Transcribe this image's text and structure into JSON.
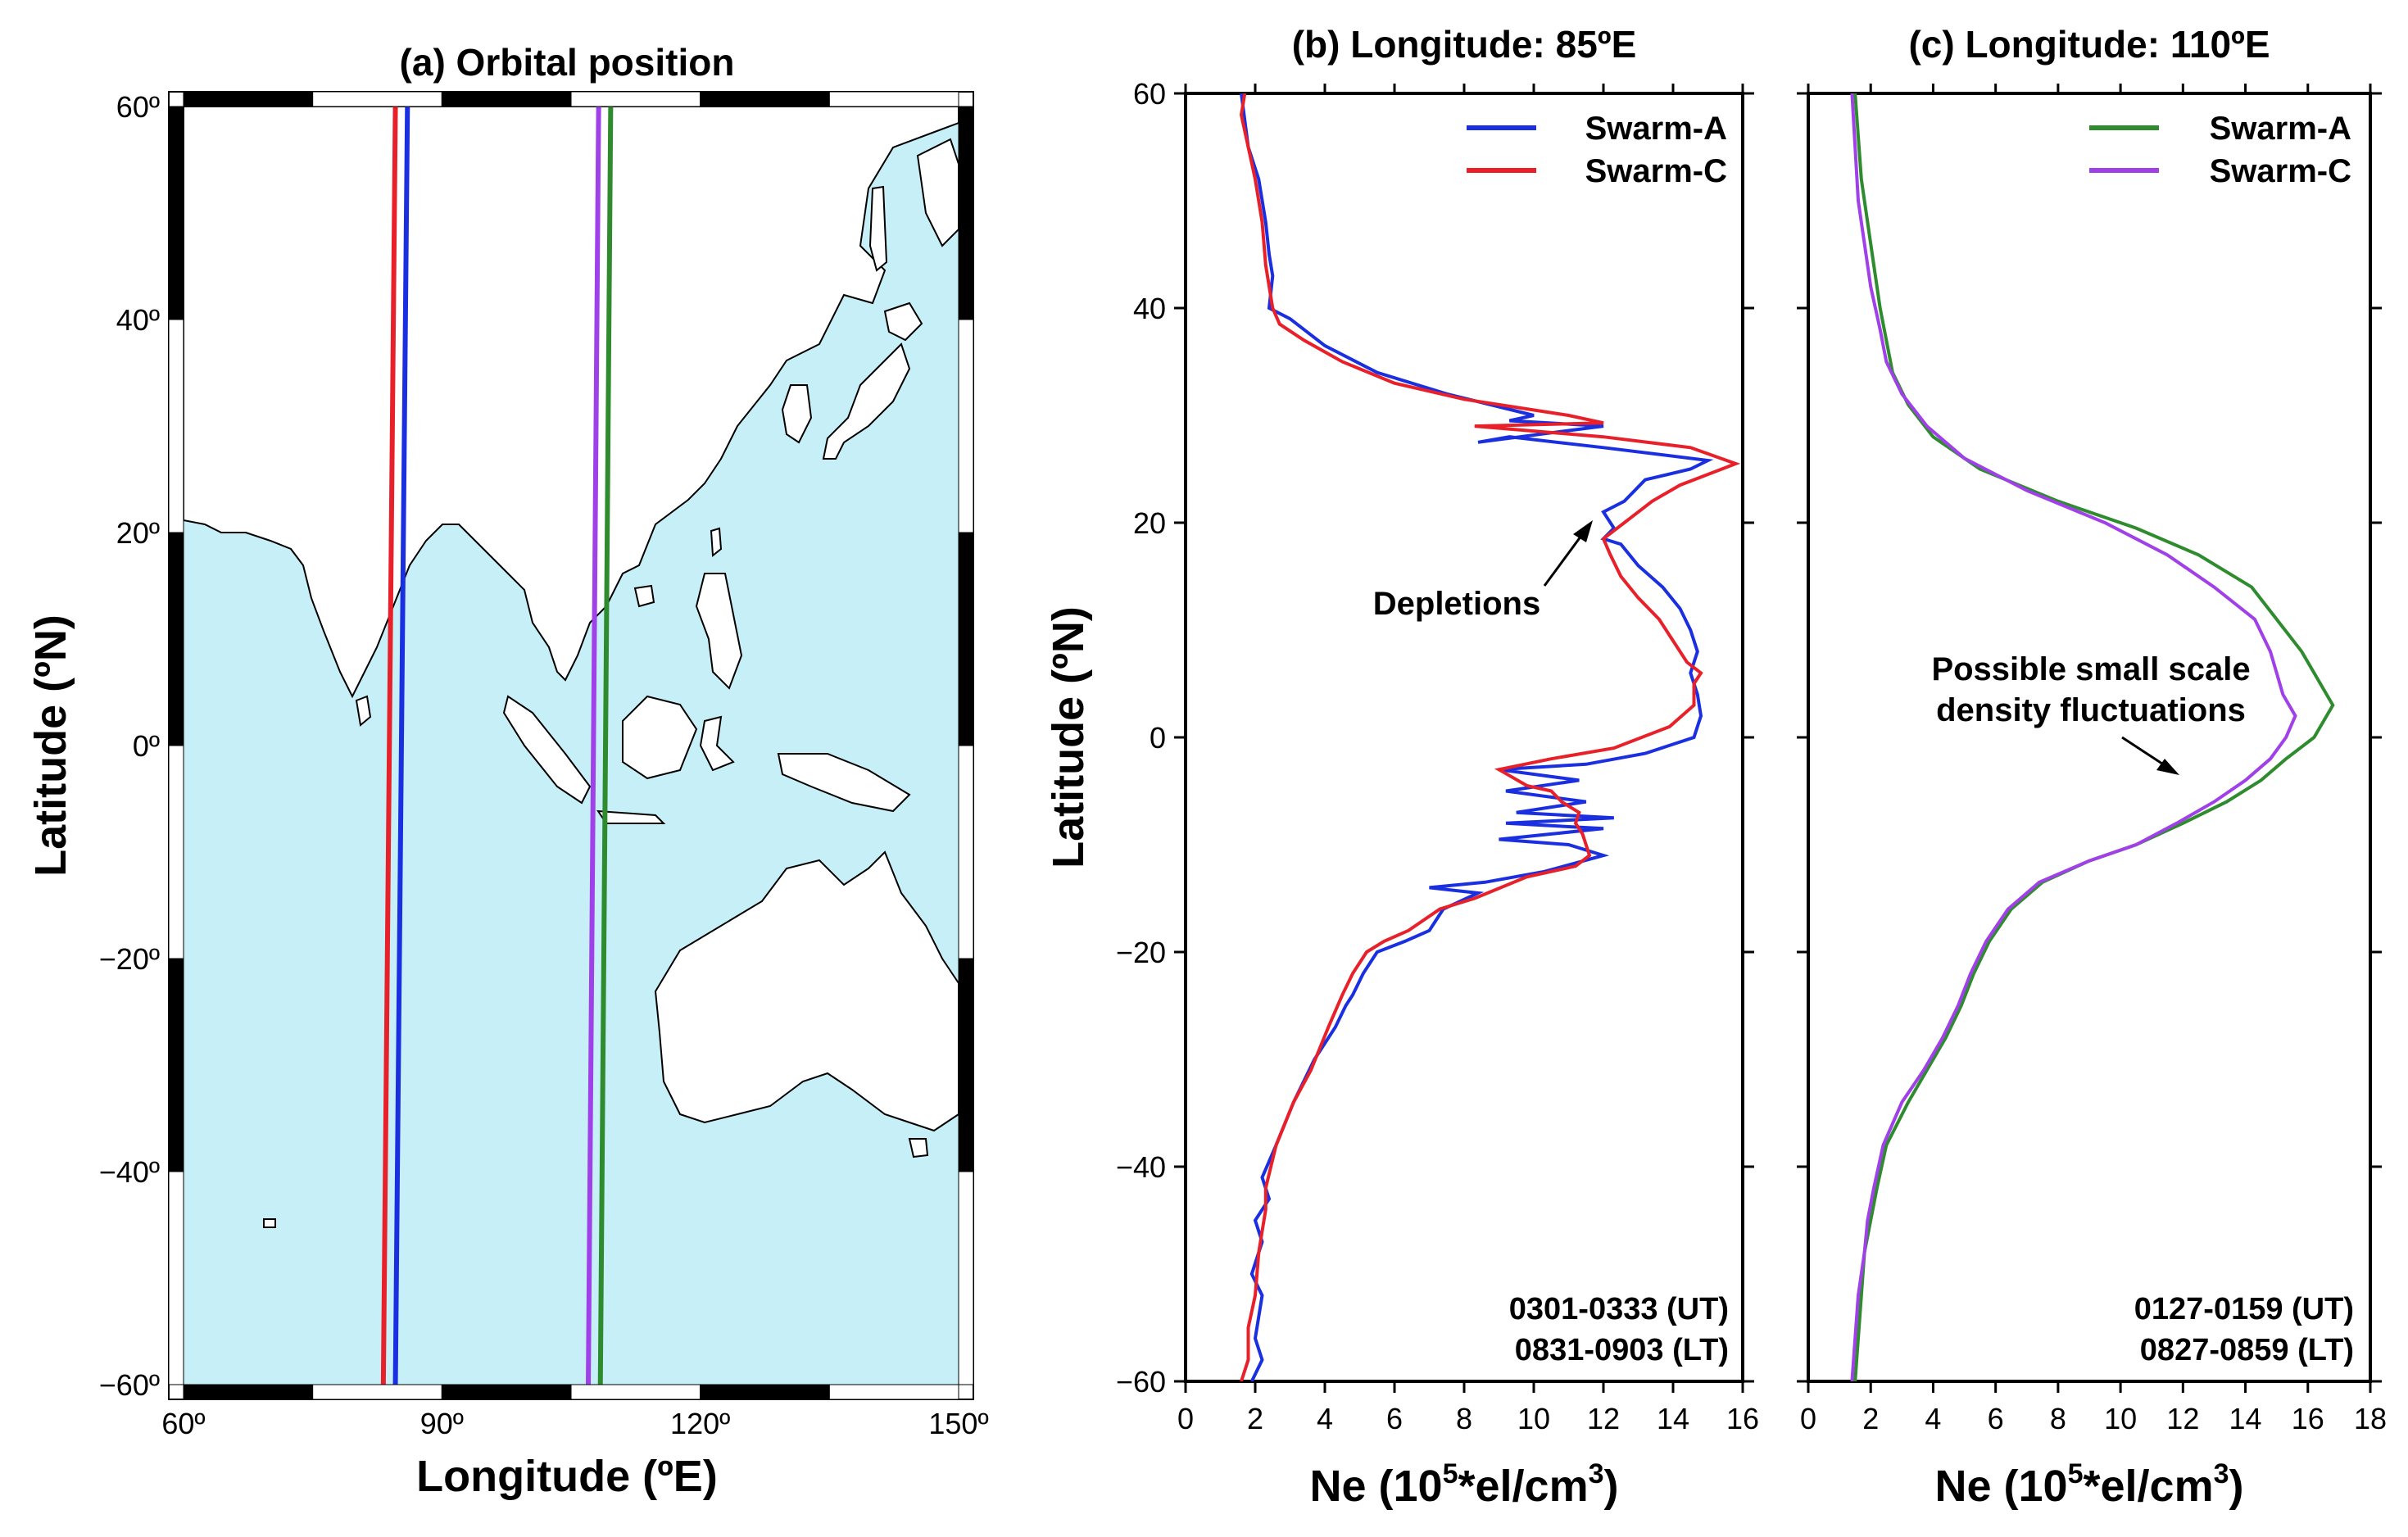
{
  "colors": {
    "ocean": "#c6eff8",
    "land": "#ffffff",
    "swarm_a_b": "#1a2fe0",
    "swarm_c_b": "#e8202a",
    "swarm_a_c": "#2e8b2e",
    "swarm_c_c": "#a040e8"
  },
  "chart_data": [
    {
      "id": "a",
      "type": "map",
      "title": "(a) Orbital position",
      "xlabel": "Longitude (ºE)",
      "ylabel": "Latitude (ºN)",
      "xlim": [
        60,
        150
      ],
      "ylim": [
        -60,
        60
      ],
      "xticks": [
        60,
        90,
        120,
        150
      ],
      "xtick_labels": [
        "60º",
        "90º",
        "120º",
        "150º"
      ],
      "yticks": [
        60,
        40,
        20,
        0,
        -20,
        -40,
        -60
      ],
      "ytick_labels": [
        "60º",
        "40º",
        "20º",
        "0º",
        "−20º",
        "−40º",
        "−60º"
      ],
      "tracks": [
        {
          "name": "Swarm-C 85E",
          "color": "#e8202a",
          "lon_north": 84.6,
          "lon_south": 83.2
        },
        {
          "name": "Swarm-A 85E",
          "color": "#1a2fe0",
          "lon_north": 86.0,
          "lon_south": 84.6
        },
        {
          "name": "Swarm-C 110E",
          "color": "#a040e8",
          "lon_north": 108.2,
          "lon_south": 107.0
        },
        {
          "name": "Swarm-A 110E",
          "color": "#2e8b2e",
          "lon_north": 109.6,
          "lon_south": 108.4
        }
      ]
    },
    {
      "id": "b",
      "type": "line",
      "title": "(b) Longitude: 85ºE",
      "xlabel_main": "Ne (10",
      "xlabel_sup1": "5",
      "xlabel_mid": "*el/cm",
      "xlabel_sup2": "3",
      "xlabel_end": ")",
      "ylabel": "Latitude (ºN)",
      "xlim": [
        0,
        16
      ],
      "ylim": [
        -60,
        60
      ],
      "xticks": [
        0,
        2,
        4,
        6,
        8,
        10,
        12,
        14,
        16
      ],
      "yticks": [
        60,
        40,
        20,
        0,
        -20,
        -40,
        -60
      ],
      "ytick_labels": [
        "60",
        "40",
        "20",
        "0",
        "−20",
        "−40",
        "−60"
      ],
      "legend": [
        "Swarm-A",
        "Swarm-C"
      ],
      "annotation": "Depletions",
      "time_ut": "0301-0333 (UT)",
      "time_lt": "0831-0903 (LT)",
      "series": [
        {
          "name": "Swarm-A",
          "color": "#1a2fe0",
          "points": [
            [
              1.9,
              -60
            ],
            [
              2.2,
              -58
            ],
            [
              2.0,
              -56
            ],
            [
              2.2,
              -52
            ],
            [
              1.9,
              -50
            ],
            [
              2.2,
              -47
            ],
            [
              2.0,
              -45
            ],
            [
              2.4,
              -43
            ],
            [
              2.2,
              -41
            ],
            [
              2.6,
              -38
            ],
            [
              3.1,
              -34
            ],
            [
              3.7,
              -30
            ],
            [
              4.3,
              -27
            ],
            [
              4.6,
              -25
            ],
            [
              4.8,
              -24
            ],
            [
              5.1,
              -22
            ],
            [
              5.5,
              -20
            ],
            [
              6.3,
              -19
            ],
            [
              7.0,
              -18
            ],
            [
              7.4,
              -16
            ],
            [
              8.4,
              -14.5
            ],
            [
              7.0,
              -14
            ],
            [
              8.6,
              -13.5
            ],
            [
              10.3,
              -12.5
            ],
            [
              12.0,
              -11
            ],
            [
              11.0,
              -10
            ],
            [
              9.0,
              -9.5
            ],
            [
              12.0,
              -8.5
            ],
            [
              9.2,
              -8
            ],
            [
              12.3,
              -7.5
            ],
            [
              9.5,
              -7
            ],
            [
              11.5,
              -6
            ],
            [
              9.2,
              -5
            ],
            [
              11.3,
              -4
            ],
            [
              9.0,
              -3
            ],
            [
              11.5,
              -2.5
            ],
            [
              13.2,
              -1.5
            ],
            [
              14.6,
              0
            ],
            [
              14.8,
              2
            ],
            [
              14.7,
              4
            ],
            [
              14.5,
              6
            ],
            [
              14.7,
              8
            ],
            [
              14.5,
              10
            ],
            [
              14.2,
              12
            ],
            [
              13.7,
              14
            ],
            [
              13.0,
              16
            ],
            [
              12.5,
              18
            ],
            [
              12.0,
              18.5
            ],
            [
              12.3,
              19.5
            ],
            [
              12.0,
              21
            ],
            [
              12.6,
              22
            ],
            [
              13.2,
              24
            ],
            [
              14.5,
              25
            ],
            [
              15.0,
              25.8
            ],
            [
              12.0,
              27
            ],
            [
              9.3,
              28
            ],
            [
              8.4,
              27.5
            ],
            [
              12.0,
              29
            ],
            [
              9.3,
              29.5
            ],
            [
              10.0,
              30
            ],
            [
              7.5,
              32
            ],
            [
              5.5,
              34
            ],
            [
              4.0,
              36.5
            ],
            [
              3.0,
              39
            ],
            [
              2.4,
              40
            ],
            [
              2.5,
              43
            ],
            [
              2.4,
              45
            ],
            [
              2.3,
              48
            ],
            [
              2.1,
              52
            ],
            [
              1.8,
              55
            ],
            [
              1.6,
              60
            ]
          ]
        },
        {
          "name": "Swarm-C",
          "color": "#e8202a",
          "points": [
            [
              1.6,
              -60
            ],
            [
              1.8,
              -58
            ],
            [
              1.8,
              -55
            ],
            [
              2.0,
              -52
            ],
            [
              2.1,
              -48
            ],
            [
              2.2,
              -46
            ],
            [
              2.3,
              -44
            ],
            [
              2.3,
              -42
            ],
            [
              2.6,
              -38
            ],
            [
              3.1,
              -34
            ],
            [
              3.6,
              -31
            ],
            [
              4.1,
              -27
            ],
            [
              4.5,
              -24
            ],
            [
              4.8,
              -22
            ],
            [
              5.2,
              -20
            ],
            [
              5.7,
              -19
            ],
            [
              6.4,
              -18
            ],
            [
              7.3,
              -16
            ],
            [
              8.3,
              -15
            ],
            [
              9.8,
              -13
            ],
            [
              11.2,
              -12
            ],
            [
              11.6,
              -11
            ],
            [
              11.4,
              -9
            ],
            [
              11.2,
              -8
            ],
            [
              11.3,
              -7
            ],
            [
              10.8,
              -6
            ],
            [
              10.5,
              -5
            ],
            [
              9.8,
              -4.5
            ],
            [
              9.0,
              -3
            ],
            [
              10.5,
              -2
            ],
            [
              12.3,
              -1
            ],
            [
              13.9,
              1
            ],
            [
              14.6,
              3
            ],
            [
              14.6,
              5
            ],
            [
              14.8,
              6
            ],
            [
              14.4,
              7
            ],
            [
              14.0,
              9
            ],
            [
              13.6,
              11
            ],
            [
              13.0,
              13
            ],
            [
              12.5,
              15
            ],
            [
              12.2,
              17
            ],
            [
              12.0,
              18.5
            ],
            [
              12.6,
              20
            ],
            [
              13.4,
              22
            ],
            [
              14.2,
              23.5
            ],
            [
              15.8,
              25.5
            ],
            [
              14.5,
              27
            ],
            [
              12.0,
              28
            ],
            [
              8.3,
              29
            ],
            [
              12.0,
              29.3
            ],
            [
              11.0,
              30
            ],
            [
              8.0,
              31.5
            ],
            [
              6.0,
              33
            ],
            [
              4.5,
              35
            ],
            [
              3.4,
              37
            ],
            [
              2.7,
              38.5
            ],
            [
              2.5,
              40
            ],
            [
              2.3,
              44
            ],
            [
              2.2,
              48
            ],
            [
              2.0,
              52
            ],
            [
              1.8,
              55
            ],
            [
              1.6,
              58
            ],
            [
              1.7,
              60
            ]
          ]
        }
      ]
    },
    {
      "id": "c",
      "type": "line",
      "title": "(c) Longitude: 110ºE",
      "xlabel_main": "Ne (10",
      "xlabel_sup1": "5",
      "xlabel_mid": "*el/cm",
      "xlabel_sup2": "3",
      "xlabel_end": ")",
      "xlim": [
        0,
        18
      ],
      "ylim": [
        -60,
        60
      ],
      "xticks": [
        0,
        2,
        4,
        6,
        8,
        10,
        12,
        14,
        16,
        18
      ],
      "yticks": [
        60,
        40,
        20,
        0,
        -20,
        -40,
        -60
      ],
      "legend": [
        "Swarm-A",
        "Swarm-C"
      ],
      "annotation_line1": "Possible small scale",
      "annotation_line2": "density fluctuations",
      "time_ut": "0127-0159 (UT)",
      "time_lt": "0827-0859 (LT)",
      "series": [
        {
          "name": "Swarm-A",
          "color": "#2e8b2e",
          "points": [
            [
              1.5,
              -60
            ],
            [
              1.6,
              -56
            ],
            [
              1.7,
              -52
            ],
            [
              1.8,
              -48
            ],
            [
              2.0,
              -45
            ],
            [
              2.2,
              -42
            ],
            [
              2.5,
              -38
            ],
            [
              3.2,
              -34
            ],
            [
              3.8,
              -31
            ],
            [
              4.4,
              -28
            ],
            [
              4.9,
              -25
            ],
            [
              5.3,
              -22
            ],
            [
              5.8,
              -19
            ],
            [
              6.5,
              -16
            ],
            [
              7.5,
              -13.5
            ],
            [
              9.0,
              -11.5
            ],
            [
              10.5,
              -10
            ],
            [
              12.0,
              -8
            ],
            [
              13.4,
              -6
            ],
            [
              14.5,
              -4
            ],
            [
              15.3,
              -2
            ],
            [
              16.2,
              0
            ],
            [
              16.8,
              3
            ],
            [
              16.2,
              6
            ],
            [
              15.8,
              8
            ],
            [
              15.0,
              11
            ],
            [
              14.2,
              14
            ],
            [
              12.5,
              17
            ],
            [
              10.5,
              19.5
            ],
            [
              8.0,
              22
            ],
            [
              5.5,
              25
            ],
            [
              4.0,
              28
            ],
            [
              3.2,
              31
            ],
            [
              2.7,
              34
            ],
            [
              2.5,
              37
            ],
            [
              2.3,
              40
            ],
            [
              2.1,
              44
            ],
            [
              1.9,
              48
            ],
            [
              1.7,
              52
            ],
            [
              1.6,
              56
            ],
            [
              1.5,
              60
            ]
          ]
        },
        {
          "name": "Swarm-C",
          "color": "#a040e8",
          "points": [
            [
              1.4,
              -60
            ],
            [
              1.5,
              -56
            ],
            [
              1.6,
              -52
            ],
            [
              1.8,
              -48
            ],
            [
              1.9,
              -45
            ],
            [
              2.1,
              -42
            ],
            [
              2.4,
              -38
            ],
            [
              3.0,
              -34
            ],
            [
              3.7,
              -31
            ],
            [
              4.3,
              -28
            ],
            [
              4.8,
              -25
            ],
            [
              5.2,
              -22
            ],
            [
              5.7,
              -19
            ],
            [
              6.4,
              -16
            ],
            [
              7.4,
              -13.5
            ],
            [
              9.0,
              -11.5
            ],
            [
              10.5,
              -10
            ],
            [
              11.8,
              -8
            ],
            [
              13.0,
              -6
            ],
            [
              14.0,
              -4
            ],
            [
              14.8,
              -2
            ],
            [
              15.3,
              0
            ],
            [
              15.6,
              2
            ],
            [
              15.2,
              4
            ],
            [
              15.0,
              6
            ],
            [
              14.8,
              8
            ],
            [
              14.3,
              11
            ],
            [
              13.0,
              14
            ],
            [
              11.5,
              17
            ],
            [
              9.5,
              20
            ],
            [
              7.0,
              23
            ],
            [
              5.0,
              26
            ],
            [
              3.8,
              29
            ],
            [
              3.0,
              32
            ],
            [
              2.5,
              35
            ],
            [
              2.3,
              38
            ],
            [
              2.0,
              42
            ],
            [
              1.8,
              46
            ],
            [
              1.6,
              50
            ],
            [
              1.5,
              55
            ],
            [
              1.4,
              60
            ]
          ]
        }
      ]
    }
  ]
}
